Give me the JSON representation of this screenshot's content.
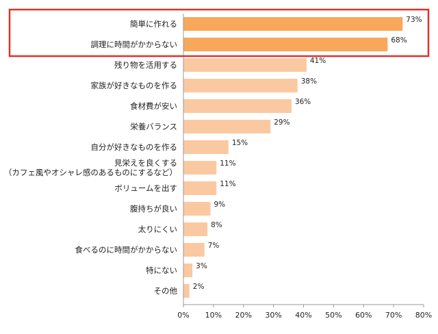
{
  "chart_data": {
    "type": "bar",
    "orientation": "horizontal",
    "categories": [
      [
        "簡単に作れる"
      ],
      [
        "調理に時間がかからない"
      ],
      [
        "残り物を活用する"
      ],
      [
        "家族が好きなものを作る"
      ],
      [
        "食材費が安い"
      ],
      [
        "栄養バランス"
      ],
      [
        "自分が好きなものを作る"
      ],
      [
        "見栄えを良くする",
        "（カフェ風やオシャレ感のあるものにするなど）"
      ],
      [
        "ボリュームを出す"
      ],
      [
        "腹持ちが良い"
      ],
      [
        "太りにくい"
      ],
      [
        "食べるのに時間がかからない"
      ],
      [
        "特にない"
      ],
      [
        "その他"
      ]
    ],
    "values": [
      73,
      68,
      41,
      38,
      36,
      29,
      15,
      11,
      11,
      9,
      8,
      7,
      3,
      2
    ],
    "value_labels": [
      "73%",
      "68%",
      "41%",
      "38%",
      "36%",
      "29%",
      "15%",
      "11%",
      "11%",
      "9%",
      "8%",
      "7%",
      "3%",
      "2%"
    ],
    "xlim": [
      0,
      80
    ],
    "x_ticks": [
      0,
      10,
      20,
      30,
      40,
      50,
      60,
      70,
      80
    ],
    "x_tick_labels": [
      "0%",
      "10%",
      "20%",
      "30%",
      "40%",
      "50%",
      "60%",
      "70%",
      "80%"
    ],
    "highlight_count": 2,
    "grid": false,
    "colors": {
      "highlight_bar": "#F7A85A",
      "bar": "#FAC9A1",
      "highlight_box": "#E0302A",
      "axis": "#999999"
    }
  }
}
